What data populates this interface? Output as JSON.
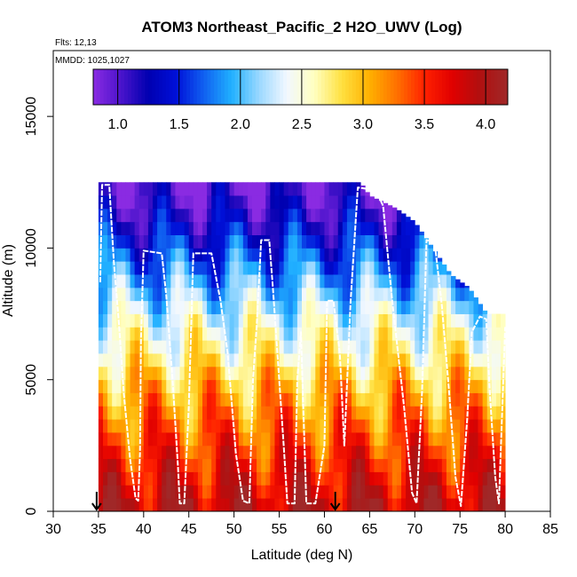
{
  "chart_data": {
    "type": "heatmap",
    "title": "ATOM3 Northeast_Pacific_2 H2O_UWV (Log)",
    "flights_label": "Flts: 12,13",
    "date_label": "MMDD: 1025,1027",
    "xlabel": "Latitude (deg N)",
    "ylabel": "Altitude (m)",
    "xlim": [
      30,
      85
    ],
    "ylim": [
      0,
      17500
    ],
    "x_ticks": [
      30,
      35,
      40,
      45,
      50,
      55,
      60,
      65,
      70,
      75,
      80,
      85
    ],
    "x_tick_labels": [
      "30",
      "35",
      "40",
      "45",
      "50",
      "55",
      "60",
      "65",
      "70",
      "75",
      "80",
      "85"
    ],
    "y_ticks": [
      0,
      5000,
      10000,
      15000
    ],
    "y_tick_labels": [
      "0",
      "5000",
      "10000",
      "15000"
    ],
    "colorbar": {
      "range": [
        0.8,
        4.18
      ],
      "ticks": [
        1.0,
        1.5,
        2.0,
        2.5,
        3.0,
        3.5,
        4.0
      ],
      "tick_labels": [
        "1.0",
        "1.5",
        "2.0",
        "2.5",
        "3.0",
        "3.5",
        "4.0"
      ],
      "colors": [
        "#8a2be2",
        "#4b14cc",
        "#0000b0",
        "#0010d8",
        "#1060f0",
        "#20b0ff",
        "#9ad8ff",
        "#f2f8ff",
        "#ffffc0",
        "#ffe040",
        "#ffb000",
        "#ff7000",
        "#ff2000",
        "#e00000",
        "#b01010",
        "#a02828"
      ]
    },
    "markers": [
      {
        "label": "arrow",
        "latitude": 34.8
      },
      {
        "label": "arrow",
        "latitude": 61.2
      }
    ],
    "grid": {
      "lat_range": [
        35,
        80
      ],
      "lat_step": 0.5,
      "alt_step": 500,
      "top_altitude": [
        [
          35,
          12500
        ],
        [
          36,
          12500
        ],
        [
          45,
          12500
        ],
        [
          50,
          12500
        ],
        [
          55,
          12500
        ],
        [
          60,
          12500
        ],
        [
          64,
          12500
        ],
        [
          65,
          12000
        ],
        [
          68,
          11500
        ],
        [
          70,
          11000
        ],
        [
          72,
          10000
        ],
        [
          74,
          9000
        ],
        [
          76,
          8500
        ],
        [
          78,
          7500
        ],
        [
          80,
          7500
        ]
      ],
      "value_profile_by_altitude": [
        [
          0,
          3.95
        ],
        [
          1000,
          3.75
        ],
        [
          2000,
          3.55
        ],
        [
          3000,
          3.35
        ],
        [
          4000,
          3.15
        ],
        [
          5000,
          2.95
        ],
        [
          6000,
          2.65
        ],
        [
          7000,
          2.45
        ],
        [
          8000,
          2.15
        ],
        [
          9000,
          1.85
        ],
        [
          10000,
          1.55
        ],
        [
          11000,
          1.25
        ],
        [
          12000,
          1.0
        ],
        [
          12500,
          0.9
        ]
      ]
    },
    "flight_track": [
      [
        35.2,
        8700
      ],
      [
        35.4,
        12400
      ],
      [
        36.2,
        12400
      ],
      [
        36.7,
        9500
      ],
      [
        37.3,
        7000
      ],
      [
        37.8,
        4500
      ],
      [
        38.5,
        2000
      ],
      [
        39.1,
        500
      ],
      [
        39.4,
        400
      ],
      [
        39.6,
        2200
      ],
      [
        39.7,
        6500
      ],
      [
        40.0,
        9900
      ],
      [
        42.0,
        9800
      ],
      [
        42.5,
        8200
      ],
      [
        43.2,
        5000
      ],
      [
        43.8,
        1700
      ],
      [
        44.0,
        300
      ],
      [
        44.5,
        300
      ],
      [
        45.0,
        4000
      ],
      [
        45.5,
        9800
      ],
      [
        47.5,
        9800
      ],
      [
        48.5,
        8000
      ],
      [
        49.3,
        6000
      ],
      [
        50.2,
        2200
      ],
      [
        51.0,
        400
      ],
      [
        51.7,
        300
      ],
      [
        52.1,
        5000
      ],
      [
        52.5,
        7000
      ],
      [
        53.0,
        10300
      ],
      [
        53.9,
        10300
      ],
      [
        54.3,
        8500
      ],
      [
        54.8,
        6000
      ],
      [
        55.5,
        2500
      ],
      [
        55.9,
        300
      ],
      [
        56.7,
        300
      ],
      [
        57.0,
        5000
      ],
      [
        57.4,
        6800
      ],
      [
        58.0,
        300
      ],
      [
        59.0,
        300
      ],
      [
        60.0,
        2500
      ],
      [
        60.3,
        8000
      ],
      [
        61.0,
        8000
      ],
      [
        61.7,
        6000
      ],
      [
        62.2,
        2500
      ],
      [
        62.9,
        8000
      ],
      [
        63.7,
        12300
      ],
      [
        65.7,
        12200
      ],
      [
        66.5,
        11600
      ],
      [
        67.5,
        8000
      ],
      [
        68.8,
        4000
      ],
      [
        69.7,
        700
      ],
      [
        70.2,
        300
      ],
      [
        70.8,
        4500
      ],
      [
        71.3,
        10300
      ],
      [
        72.2,
        10200
      ],
      [
        73.0,
        7800
      ],
      [
        73.8,
        4500
      ],
      [
        74.5,
        1300
      ],
      [
        75.1,
        200
      ],
      [
        75.8,
        3500
      ],
      [
        76.3,
        6800
      ],
      [
        77.2,
        7400
      ],
      [
        77.9,
        7300
      ],
      [
        78.3,
        4500
      ],
      [
        78.9,
        1300
      ],
      [
        79.3,
        300
      ],
      [
        80.0,
        7000
      ]
    ]
  }
}
